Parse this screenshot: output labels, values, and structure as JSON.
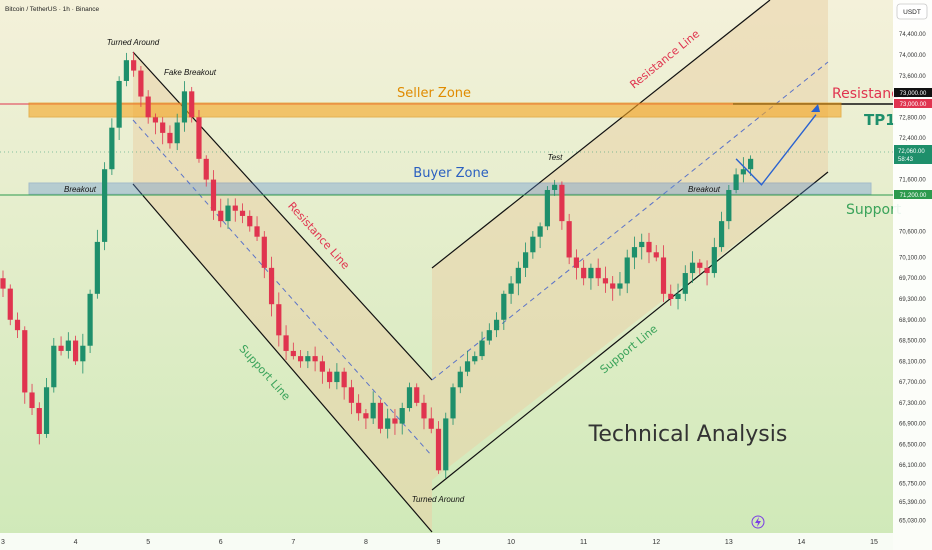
{
  "header": {
    "symbol_title": "Bitcoin / TetherUS · 1h · Binance",
    "currency_button": "USDT"
  },
  "price_axis": {
    "ticks": [
      "74,400.00",
      "74,000.00",
      "73,600.00",
      "72,800.00",
      "72,400.00",
      "71,600.00",
      "70,600.00",
      "70,100.00",
      "69,700.00",
      "69,300.00",
      "68,900.00",
      "68,500.00",
      "68,100.00",
      "67,700.00",
      "67,300.00",
      "66,900.00",
      "66,500.00",
      "66,100.00",
      "65,750.00",
      "65,390.00",
      "65,030.00"
    ],
    "resistance_badge": "73,000.00",
    "resistance_badge_dup": "73,000.00",
    "current_price": "72,060.00",
    "countdown": "58:43",
    "support_badge": "71,200.00"
  },
  "time_axis": {
    "ticks": [
      "3",
      "4",
      "5",
      "6",
      "7",
      "8",
      "9",
      "10",
      "11",
      "12",
      "13",
      "14",
      "15"
    ]
  },
  "annotations": {
    "seller_zone": "Seller Zone",
    "buyer_zone": "Buyer Zone",
    "resistance": "Resistance",
    "tp1": "TP1",
    "support": "Support",
    "technical_analysis": "Technical Analysis",
    "turned_around_top": "Turned Around",
    "fake_breakout": "Fake Breakout",
    "breakout_left": "Breakout",
    "breakout_right": "Breakout",
    "test": "Test",
    "turned_around_bottom": "Turned Around",
    "resistance_line_down": "Resistance Line",
    "support_line_down": "Support Line",
    "resistance_line_up": "Resistance Line",
    "support_line_up": "Support Line"
  },
  "colors": {
    "background_top": "#f4f1da",
    "background_bottom": "#cfe9b8",
    "bull": "#1e8f6b",
    "bear": "#e0344f",
    "seller_zone_fill": "#f5a623",
    "buyer_zone_fill": "#5b8fd6",
    "resistance_text": "#e0344f",
    "support_text": "#3aa35a",
    "tp1_text": "#1e8f6b",
    "arrow": "#2a62d0",
    "channel_fill": "#e9d1a8"
  },
  "chart_data": {
    "type": "candlestick",
    "title": "Bitcoin / TetherUS · 1h · Binance",
    "x_ticks": [
      "3",
      "4",
      "5",
      "6",
      "7",
      "8",
      "9",
      "10",
      "11",
      "12",
      "13",
      "14",
      "15"
    ],
    "ylim": [
      65030,
      74600
    ],
    "levels": {
      "resistance": 73000,
      "seller_zone": [
        72750,
        73050
      ],
      "buyer_zone": [
        71150,
        71350
      ],
      "support": 71200,
      "current_price": 72060
    },
    "swing_points": [
      {
        "label": "Turned Around",
        "day": 4.8,
        "price": 74100
      },
      {
        "label": "Fake Breakout",
        "day": 5.45,
        "price": 73400
      },
      {
        "label": "Turned Around",
        "day": 9.0,
        "price": 65800
      },
      {
        "label": "Test",
        "day": 10.6,
        "price": 71850
      }
    ],
    "projection_path": [
      {
        "day": 13.1,
        "price": 72000
      },
      {
        "day": 13.45,
        "price": 71500
      },
      {
        "day": 14.2,
        "price": 72850
      }
    ],
    "series": [
      {
        "values": [
          [
            3.0,
            69500
          ],
          [
            3.1,
            68900
          ],
          [
            3.2,
            68700
          ],
          [
            3.3,
            67500
          ],
          [
            3.4,
            67200
          ],
          [
            3.5,
            66700
          ],
          [
            3.6,
            67600
          ],
          [
            3.7,
            68400
          ],
          [
            3.8,
            68300
          ],
          [
            3.9,
            68500
          ],
          [
            4.0,
            68100
          ],
          [
            4.1,
            68400
          ],
          [
            4.2,
            69400
          ],
          [
            4.3,
            70400
          ],
          [
            4.4,
            71800
          ],
          [
            4.5,
            72600
          ],
          [
            4.6,
            73500
          ],
          [
            4.7,
            73900
          ],
          [
            4.8,
            73700
          ],
          [
            4.9,
            73200
          ],
          [
            5.0,
            72800
          ],
          [
            5.1,
            72700
          ],
          [
            5.2,
            72500
          ],
          [
            5.3,
            72300
          ],
          [
            5.4,
            72700
          ],
          [
            5.5,
            73300
          ],
          [
            5.6,
            72800
          ],
          [
            5.7,
            72000
          ],
          [
            5.8,
            71600
          ],
          [
            5.9,
            71000
          ],
          [
            6.0,
            70800
          ],
          [
            6.1,
            71100
          ],
          [
            6.2,
            71000
          ],
          [
            6.3,
            70900
          ],
          [
            6.4,
            70700
          ],
          [
            6.5,
            70500
          ],
          [
            6.6,
            69900
          ],
          [
            6.7,
            69200
          ],
          [
            6.8,
            68600
          ],
          [
            6.9,
            68300
          ],
          [
            7.0,
            68200
          ],
          [
            7.1,
            68100
          ],
          [
            7.2,
            68200
          ],
          [
            7.3,
            68100
          ],
          [
            7.4,
            67900
          ],
          [
            7.5,
            67700
          ],
          [
            7.6,
            67900
          ],
          [
            7.7,
            67600
          ],
          [
            7.8,
            67300
          ],
          [
            7.9,
            67100
          ],
          [
            8.0,
            67000
          ],
          [
            8.1,
            67300
          ],
          [
            8.2,
            66800
          ],
          [
            8.3,
            67000
          ],
          [
            8.4,
            66900
          ],
          [
            8.5,
            67200
          ],
          [
            8.6,
            67600
          ],
          [
            8.7,
            67300
          ],
          [
            8.8,
            67000
          ],
          [
            8.9,
            66800
          ],
          [
            9.0,
            66000
          ],
          [
            9.1,
            67000
          ],
          [
            9.2,
            67600
          ],
          [
            9.3,
            67900
          ],
          [
            9.4,
            68100
          ],
          [
            9.5,
            68200
          ],
          [
            9.6,
            68500
          ],
          [
            9.7,
            68700
          ],
          [
            9.8,
            68900
          ],
          [
            9.9,
            69400
          ],
          [
            10.0,
            69600
          ],
          [
            10.1,
            69900
          ],
          [
            10.2,
            70200
          ],
          [
            10.3,
            70500
          ],
          [
            10.4,
            70700
          ],
          [
            10.5,
            71400
          ],
          [
            10.6,
            71500
          ],
          [
            10.7,
            70800
          ],
          [
            10.8,
            70100
          ],
          [
            10.9,
            69900
          ],
          [
            11.0,
            69700
          ],
          [
            11.1,
            69900
          ],
          [
            11.2,
            69700
          ],
          [
            11.3,
            69600
          ],
          [
            11.4,
            69500
          ],
          [
            11.5,
            69600
          ],
          [
            11.6,
            70100
          ],
          [
            11.7,
            70300
          ],
          [
            11.8,
            70400
          ],
          [
            11.9,
            70200
          ],
          [
            12.0,
            70100
          ],
          [
            12.1,
            69400
          ],
          [
            12.2,
            69300
          ],
          [
            12.3,
            69400
          ],
          [
            12.4,
            69800
          ],
          [
            12.5,
            70000
          ],
          [
            12.6,
            69900
          ],
          [
            12.7,
            69800
          ],
          [
            12.8,
            70300
          ],
          [
            12.9,
            70800
          ],
          [
            13.0,
            71400
          ],
          [
            13.1,
            71700
          ],
          [
            13.2,
            71800
          ],
          [
            13.3,
            72000
          ]
        ]
      }
    ]
  }
}
